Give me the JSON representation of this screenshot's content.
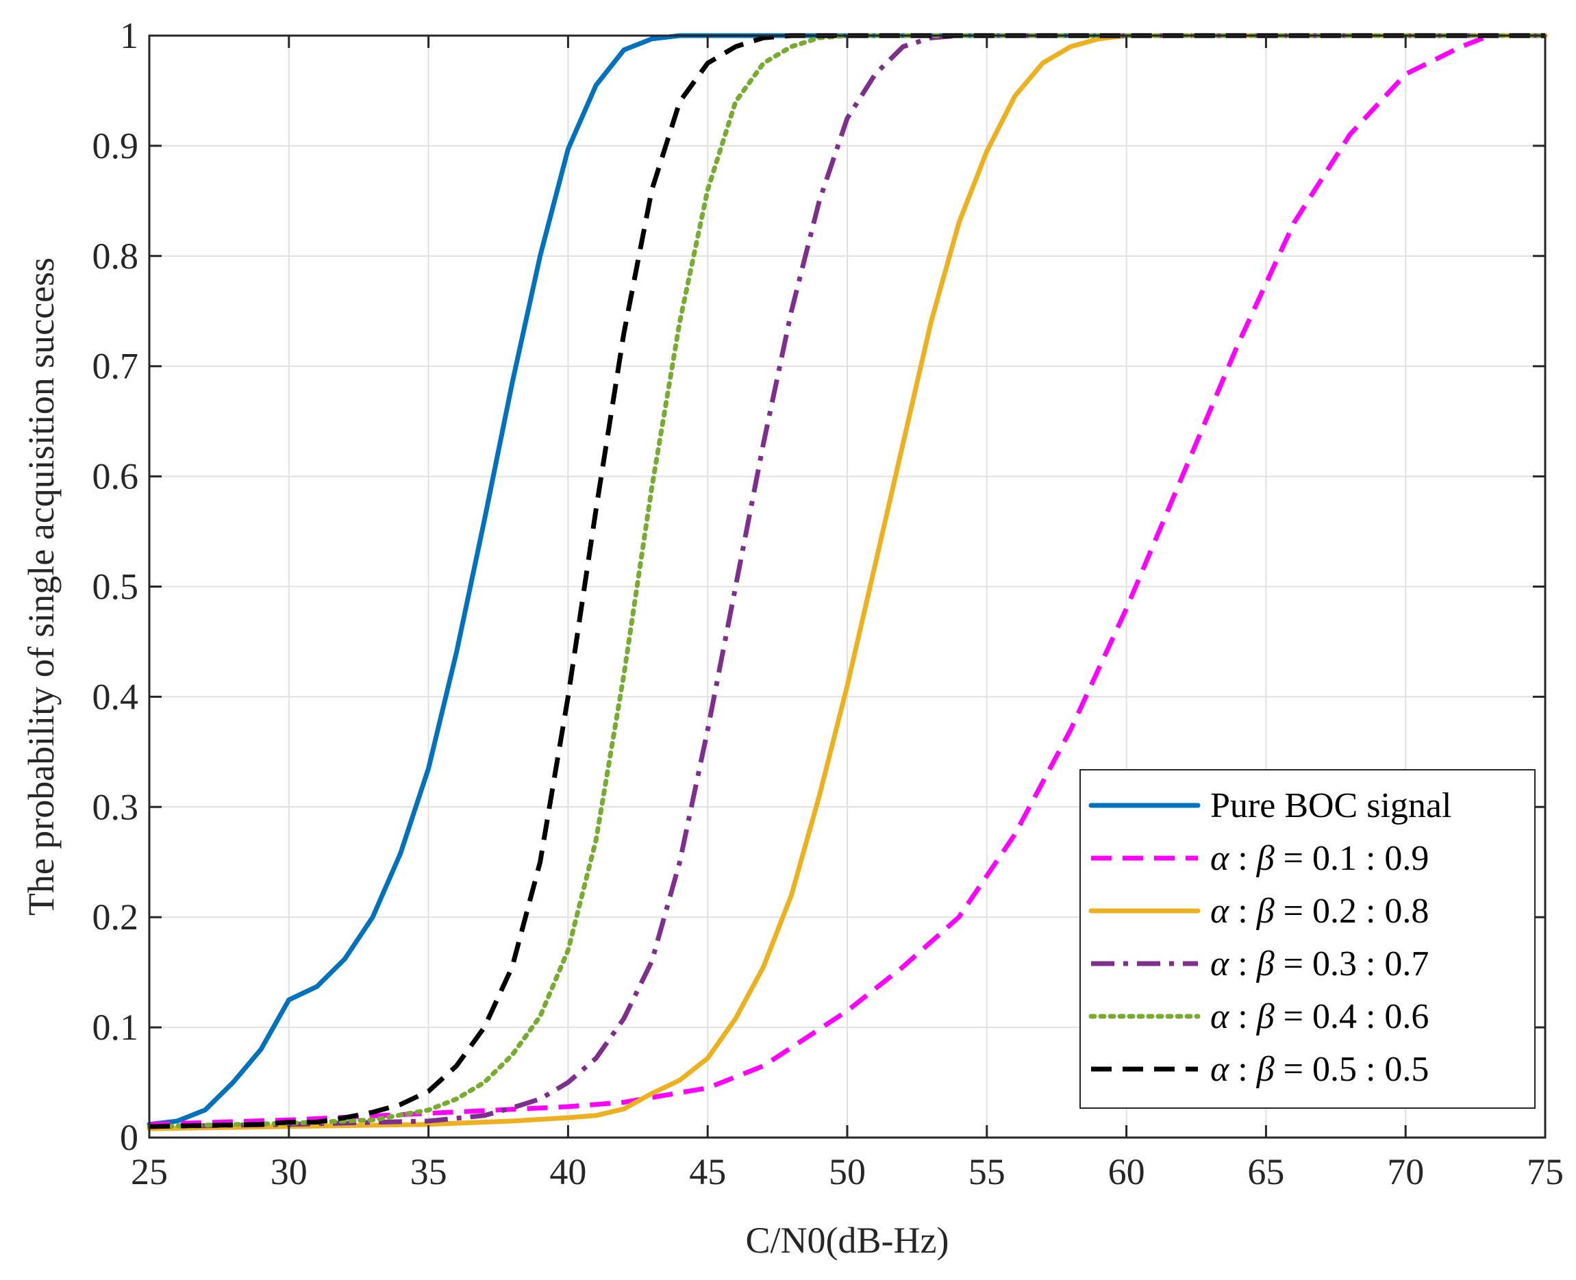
{
  "chart_data": {
    "type": "line",
    "title": "",
    "xlabel": "C/N0(dB-Hz)",
    "ylabel": "The probability of single acquisition success",
    "xlim": [
      25,
      75
    ],
    "ylim": [
      0,
      1
    ],
    "xticks": [
      "25",
      "30",
      "35",
      "40",
      "45",
      "50",
      "55",
      "60",
      "65",
      "70",
      "75"
    ],
    "yticks": [
      "0",
      "0.1",
      "0.2",
      "0.3",
      "0.4",
      "0.5",
      "0.6",
      "0.7",
      "0.8",
      "0.9",
      "1"
    ],
    "grid": true,
    "legend_position": "bottom-right",
    "series": [
      {
        "name": "Pure BOC signal",
        "label_parts": [
          "Pure BOC signal"
        ],
        "color": "#0072BD",
        "dash": "solid",
        "x": [
          25,
          26,
          27,
          28,
          29,
          30,
          31,
          32,
          33,
          34,
          35,
          36,
          37,
          38,
          39,
          40,
          41,
          42,
          43,
          44,
          45,
          50,
          75
        ],
        "y": [
          0.012,
          0.015,
          0.025,
          0.05,
          0.08,
          0.125,
          0.137,
          0.162,
          0.2,
          0.258,
          0.335,
          0.44,
          0.56,
          0.685,
          0.8,
          0.897,
          0.955,
          0.987,
          0.997,
          1.0,
          1.0,
          1.0,
          1.0
        ]
      },
      {
        "name": "α : β = 0.1 : 0.9",
        "label_parts": [
          "α",
          " : ",
          "β",
          " = 0.1 : 0.9"
        ],
        "color": "#FF00FF",
        "dash": "dashed",
        "x": [
          25,
          30,
          35,
          40,
          42,
          45,
          47,
          50,
          52,
          54,
          56,
          58,
          60,
          62,
          64,
          66,
          68,
          70,
          72,
          73,
          75
        ],
        "y": [
          0.012,
          0.016,
          0.022,
          0.028,
          0.032,
          0.045,
          0.065,
          0.115,
          0.155,
          0.2,
          0.275,
          0.37,
          0.48,
          0.6,
          0.72,
          0.83,
          0.91,
          0.965,
          0.99,
          1.0,
          1.0
        ]
      },
      {
        "name": "α : β = 0.2 : 0.8",
        "label_parts": [
          "α",
          " : ",
          "β",
          " = 0.2 : 0.8"
        ],
        "color": "#EDB120",
        "dash": "solid",
        "x": [
          25,
          30,
          35,
          38,
          40,
          41,
          42,
          43,
          44,
          45,
          46,
          47,
          48,
          49,
          50,
          51,
          52,
          53,
          54,
          55,
          56,
          57,
          58,
          59,
          60,
          75
        ],
        "y": [
          0.008,
          0.01,
          0.012,
          0.015,
          0.018,
          0.02,
          0.026,
          0.04,
          0.052,
          0.072,
          0.108,
          0.155,
          0.22,
          0.31,
          0.41,
          0.52,
          0.63,
          0.74,
          0.83,
          0.895,
          0.945,
          0.975,
          0.99,
          0.997,
          1.0,
          1.0
        ]
      },
      {
        "name": "α : β = 0.3 : 0.7",
        "label_parts": [
          "α",
          " : ",
          "β",
          " = 0.3 : 0.7"
        ],
        "color": "#7E2F8E",
        "dash": "dashdot",
        "x": [
          25,
          30,
          35,
          37,
          38,
          39,
          40,
          41,
          42,
          43,
          44,
          45,
          46,
          47,
          48,
          49,
          50,
          51,
          52,
          53,
          54,
          75
        ],
        "y": [
          0.01,
          0.012,
          0.015,
          0.02,
          0.027,
          0.035,
          0.05,
          0.072,
          0.108,
          0.16,
          0.25,
          0.37,
          0.5,
          0.63,
          0.75,
          0.85,
          0.925,
          0.965,
          0.99,
          0.998,
          1.0,
          1.0
        ]
      },
      {
        "name": "α : β = 0.4 : 0.6",
        "label_parts": [
          "α",
          " : ",
          "β",
          " = 0.4 : 0.6"
        ],
        "color": "#77AC30",
        "dash": "dotted",
        "x": [
          25,
          30,
          33,
          35,
          36,
          37,
          38,
          39,
          40,
          41,
          42,
          43,
          44,
          45,
          46,
          47,
          48,
          49,
          50,
          75
        ],
        "y": [
          0.01,
          0.013,
          0.016,
          0.025,
          0.035,
          0.05,
          0.075,
          0.11,
          0.17,
          0.27,
          0.42,
          0.59,
          0.74,
          0.86,
          0.94,
          0.975,
          0.99,
          0.998,
          1.0,
          1.0
        ]
      },
      {
        "name": "α : β = 0.5 : 0.5",
        "label_parts": [
          "α",
          " : ",
          "β",
          " = 0.5 : 0.5"
        ],
        "color": "#000000",
        "dash": "dashed",
        "x": [
          25,
          29,
          30,
          31,
          32,
          33,
          34,
          35,
          36,
          37,
          38,
          39,
          40,
          41,
          42,
          43,
          44,
          45,
          46,
          47,
          48,
          75
        ],
        "y": [
          0.01,
          0.012,
          0.014,
          0.014,
          0.018,
          0.023,
          0.03,
          0.042,
          0.065,
          0.1,
          0.155,
          0.25,
          0.4,
          0.57,
          0.73,
          0.86,
          0.94,
          0.975,
          0.99,
          0.998,
          1.0,
          1.0
        ]
      }
    ]
  }
}
